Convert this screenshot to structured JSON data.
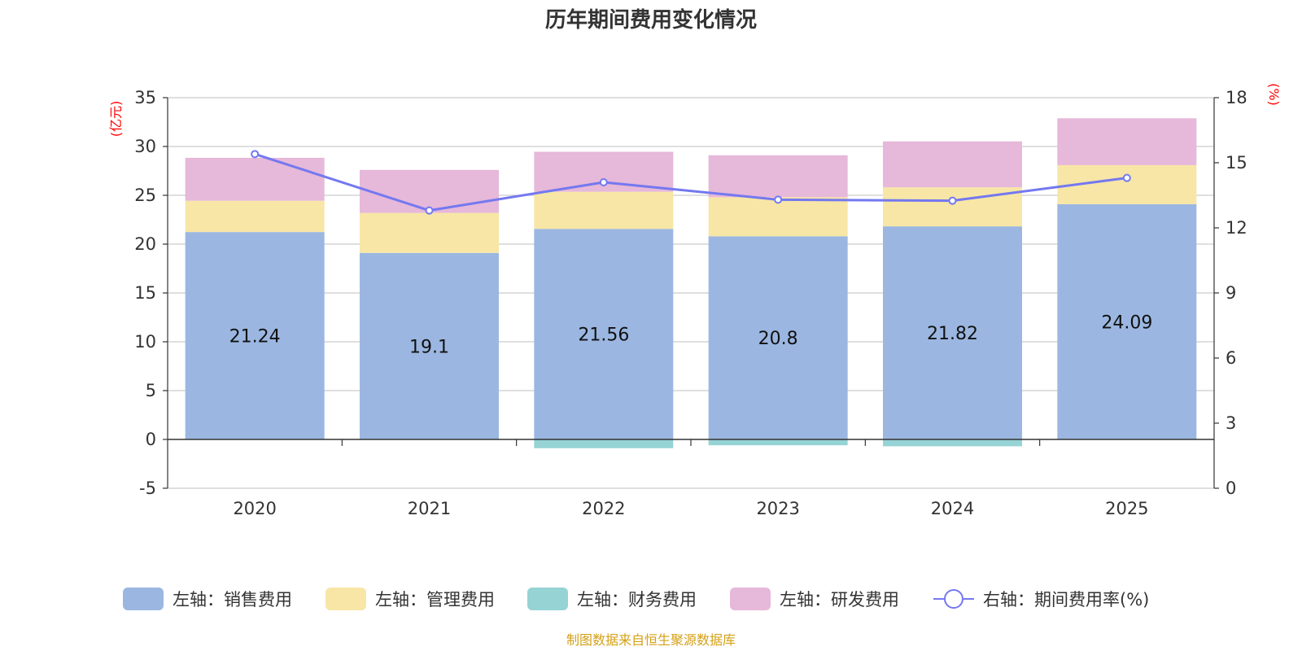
{
  "chart_data": {
    "type": "bar",
    "stacked": true,
    "title": "历年期间费用变化情况",
    "categories": [
      "2020",
      "2021",
      "2022",
      "2023",
      "2024",
      "2025"
    ],
    "left_axis": {
      "unit": "(亿元)",
      "ylim": [
        -5,
        35
      ],
      "ticks": [
        -5,
        0,
        5,
        10,
        15,
        20,
        25,
        30,
        35
      ]
    },
    "right_axis": {
      "unit": "(%)",
      "ylim": [
        0,
        18
      ],
      "ticks": [
        0,
        3,
        6,
        9,
        12,
        15,
        18
      ]
    },
    "series": [
      {
        "name": "左轴：销售费用",
        "type": "bar",
        "color": "#9bb7e1",
        "values": [
          21.24,
          19.1,
          21.56,
          20.8,
          21.82,
          24.09
        ],
        "labels": [
          "21.24",
          "19.1",
          "21.56",
          "20.8",
          "21.82",
          "24.09"
        ]
      },
      {
        "name": "左轴：管理费用",
        "type": "bar",
        "color": "#f7e6a6",
        "values": [
          3.2,
          4.1,
          3.8,
          4.0,
          4.0,
          4.0
        ]
      },
      {
        "name": "左轴：财务费用",
        "type": "bar",
        "color": "#96d3d5",
        "values": [
          0.0,
          0.0,
          -0.9,
          -0.6,
          -0.7,
          0.0
        ]
      },
      {
        "name": "左轴：研发费用",
        "type": "bar",
        "color": "#e6b8d9",
        "values": [
          4.4,
          4.4,
          4.1,
          4.3,
          4.7,
          4.8
        ]
      },
      {
        "name": "右轴：期间费用率(%)",
        "type": "line",
        "axis": "right",
        "color": "#7478f0",
        "values": [
          15.4,
          12.8,
          14.1,
          13.3,
          13.25,
          14.3
        ]
      }
    ],
    "source": "制图数据来自恒生聚源数据库"
  }
}
